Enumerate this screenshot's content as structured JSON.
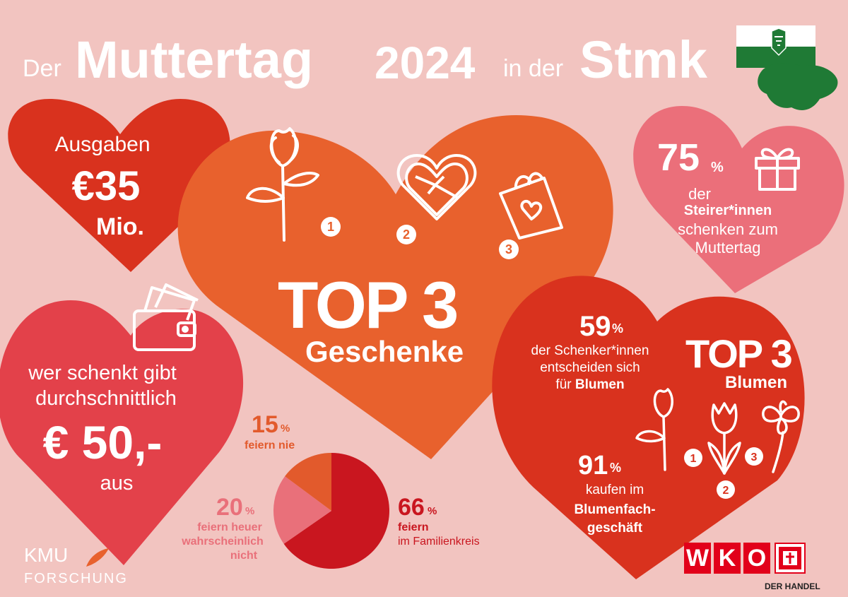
{
  "title": {
    "der1": "Der",
    "muttertag": "Muttertag",
    "year": "2024",
    "inder": "in der",
    "stmk": "Stmk"
  },
  "ausgaben": {
    "label": "Ausgaben",
    "amount": "€35",
    "unit": "Mio."
  },
  "top3_gifts": {
    "ranks": [
      "1",
      "2",
      "3"
    ],
    "icons": [
      "rose-icon",
      "heart-chocolate-box-icon",
      "gift-bag-icon"
    ],
    "heading": "TOP 3",
    "subheading": "Geschenke"
  },
  "share_giving": {
    "number": "75",
    "percent": "%",
    "line1": "der",
    "line2": "Steirer*innen",
    "line3": "schenken zum",
    "line4": "Muttertag"
  },
  "average_spend": {
    "line1": "wer schenkt gibt",
    "line2": "durchschnittlich",
    "amount": "€ 50,-",
    "line3": "aus"
  },
  "flowers": {
    "pct_number": "59",
    "percent": "%",
    "line1": "der Schenker*innen",
    "line2": "entscheiden sich",
    "line3_pre": "für ",
    "line3_bold": "Blumen",
    "heading": "TOP 3",
    "subheading": "Blumen",
    "ranks": [
      "1",
      "2",
      "3"
    ],
    "florist_number": "91",
    "florist_line1": "kaufen im",
    "florist_line2": "Blumenfach-",
    "florist_line3": "geschäft"
  },
  "chart_data": {
    "type": "pie",
    "slices": [
      {
        "value": 66,
        "number": "66",
        "label1": "feiern",
        "label2": "im Familienkreis",
        "color": "#c9161f"
      },
      {
        "value": 20,
        "number": "20",
        "label1": "feiern heuer",
        "label2": "wahrscheinlich",
        "label3": "nicht",
        "color": "#e9707a"
      },
      {
        "value": 15,
        "number": "15",
        "label1": "feiern nie",
        "color": "#e25a2c"
      }
    ],
    "percent": "%"
  },
  "logos": {
    "kmu_top": "KMU",
    "kmu_bottom": "FORSCHUNG",
    "wko_letters": [
      "W",
      "K",
      "O"
    ],
    "wko_sub": "DER HANDEL"
  },
  "colors": {
    "background": "#f2c4c0",
    "heart_dark_red": "#d9321e",
    "heart_orange": "#e8612d",
    "heart_pink": "#eb6f7a",
    "heart_red": "#e3414a",
    "pie_main": "#c9161f",
    "pie_pink": "#e9707a",
    "pie_orange": "#e25a2c",
    "styria_green": "#1f7a35"
  }
}
